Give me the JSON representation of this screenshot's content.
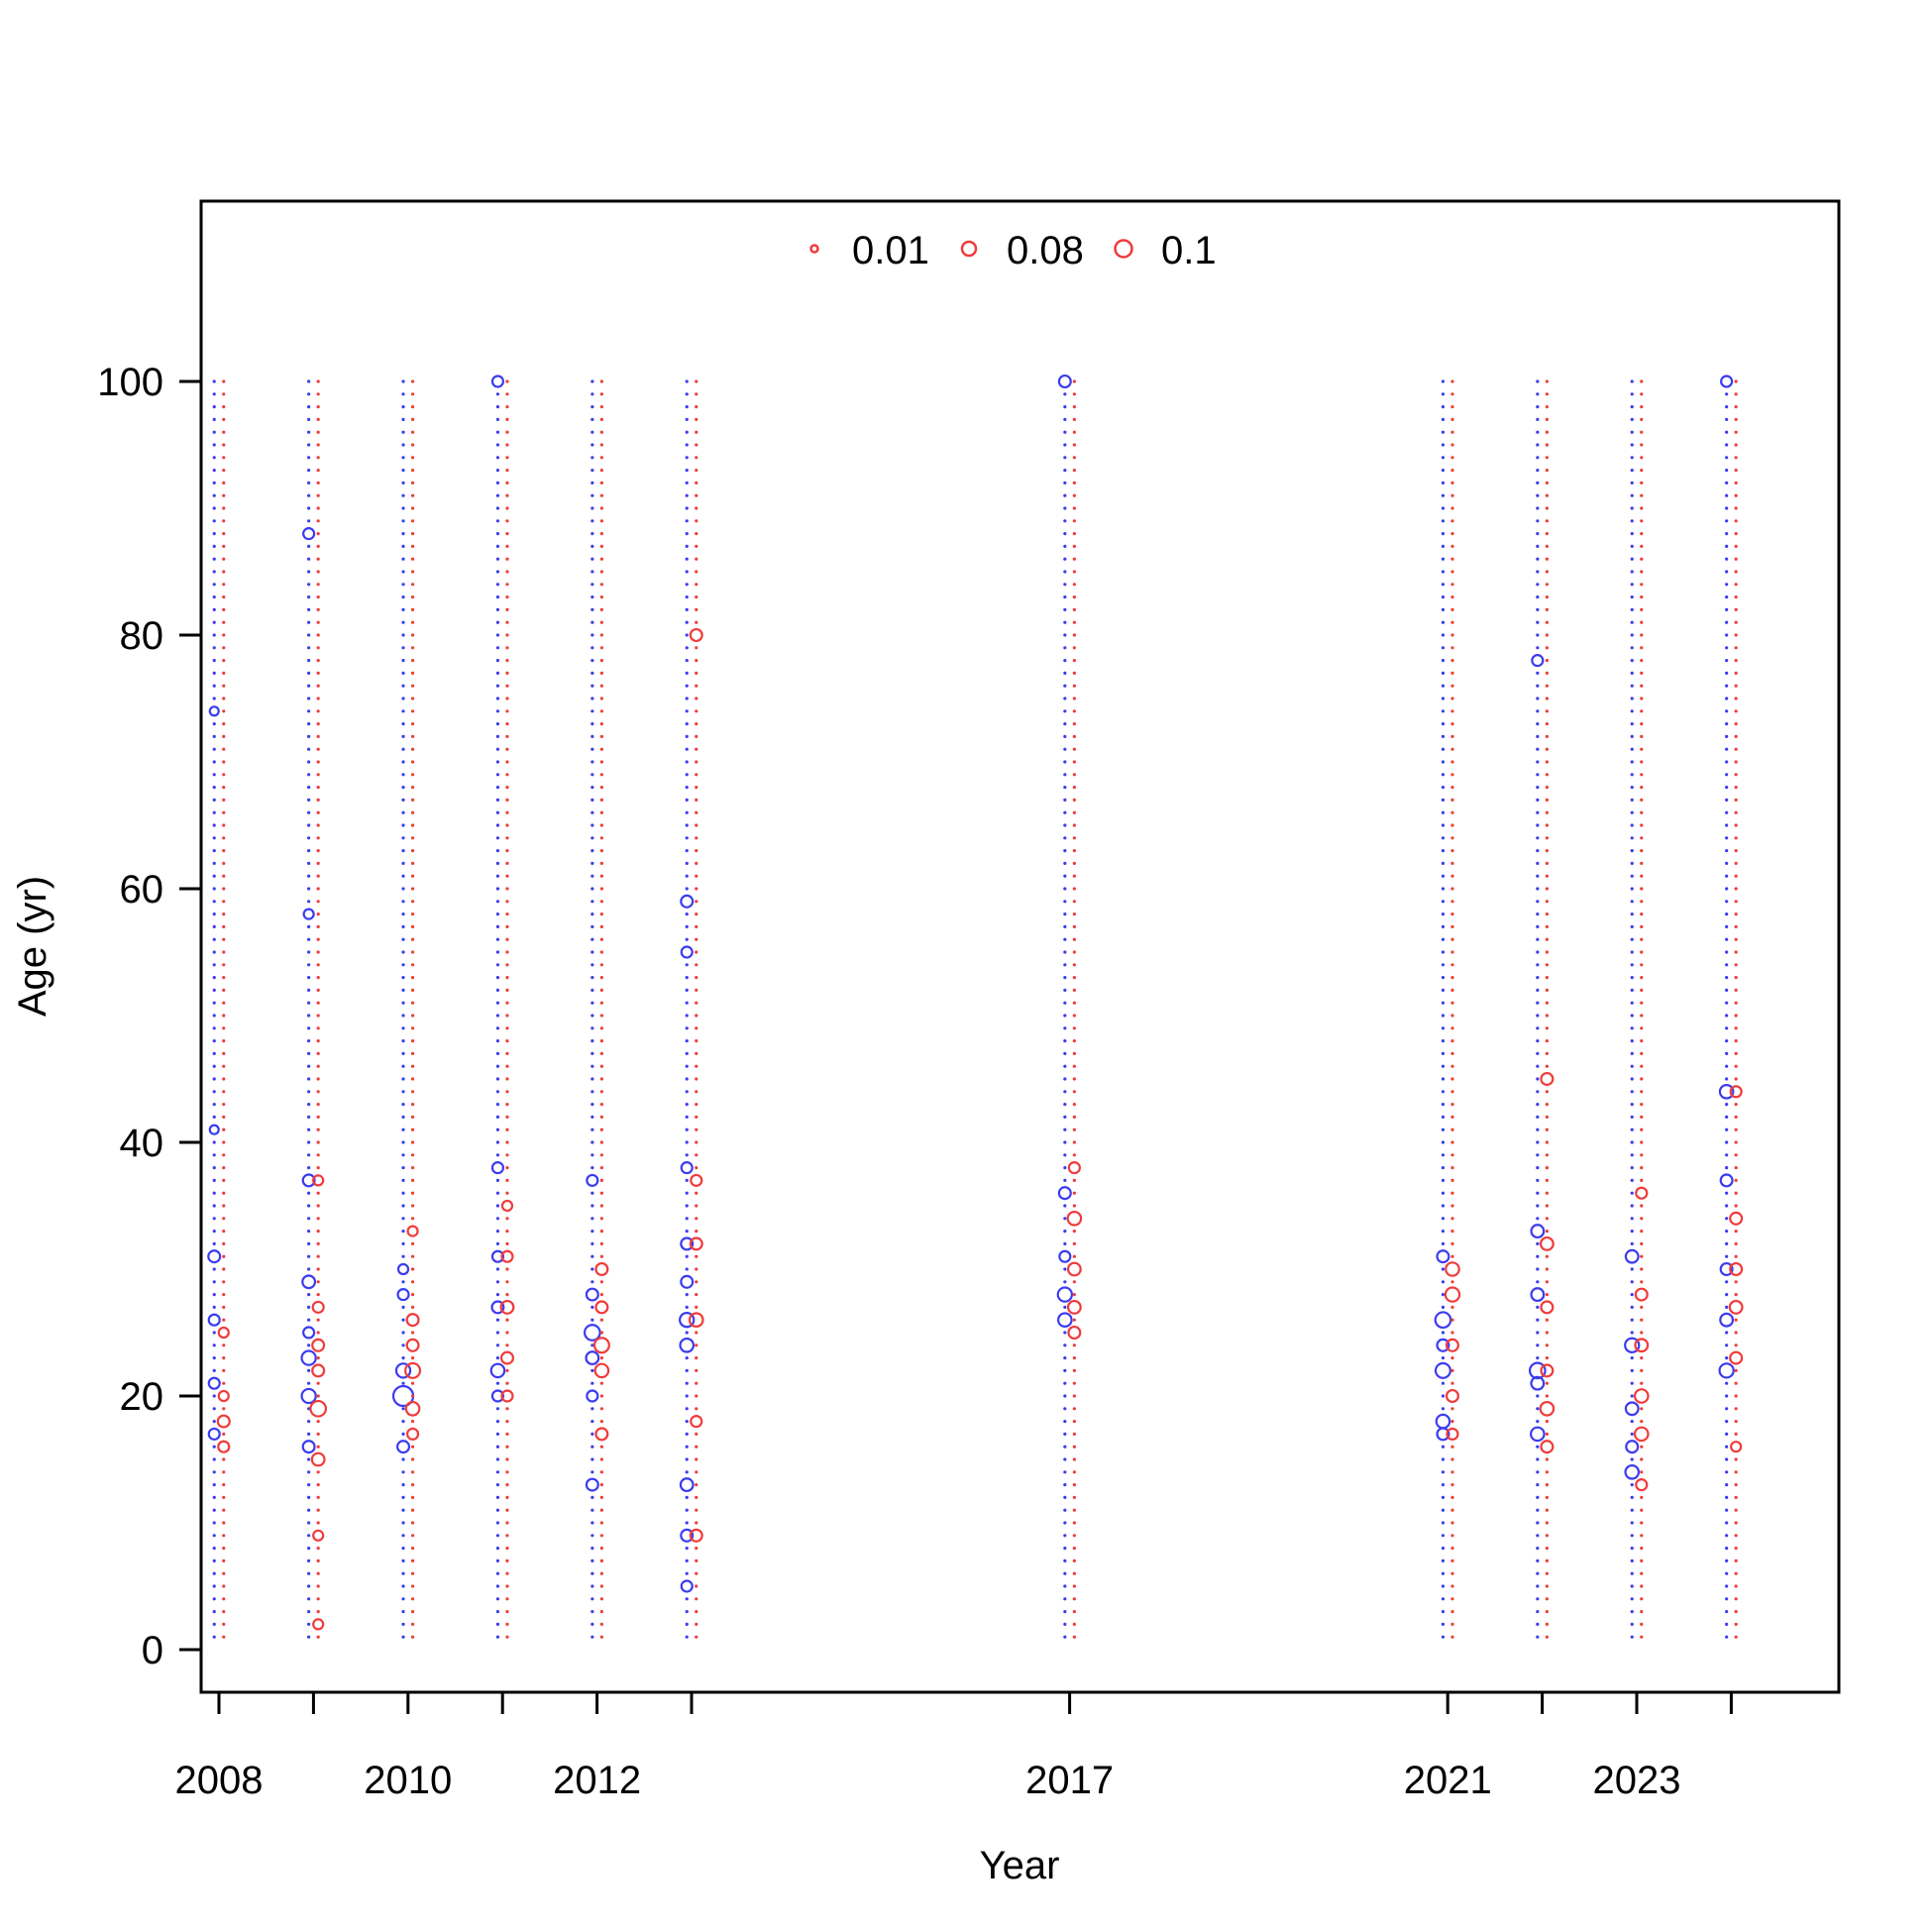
{
  "chart_data": {
    "type": "scatter",
    "subtype": "bubble",
    "title": "",
    "xlabel": "Year",
    "ylabel": "Age (yr)",
    "xlim": [
      2007.8,
      2025.2
    ],
    "ylim": [
      -3,
      115
    ],
    "x_ticks": [
      2008,
      2009,
      2010,
      2011,
      2012,
      2013,
      2017,
      2021,
      2022,
      2023,
      2024
    ],
    "x_tick_labels": [
      {
        "value": 2008,
        "label": "2008"
      },
      {
        "value": 2010,
        "label": "2010"
      },
      {
        "value": 2012,
        "label": "2012"
      },
      {
        "value": 2017,
        "label": "2017"
      },
      {
        "value": 2021,
        "label": "2021"
      },
      {
        "value": 2023,
        "label": "2023"
      }
    ],
    "y_ticks": [
      0,
      20,
      40,
      60,
      80,
      100
    ],
    "y_tick_labels": [
      "0",
      "20",
      "40",
      "60",
      "80",
      "100"
    ],
    "years": [
      2008,
      2009,
      2010,
      2011,
      2012,
      2013,
      2017,
      2021,
      2022,
      2023,
      2024
    ],
    "age_range": [
      1,
      100
    ],
    "legend": {
      "placement": "top-center",
      "entries": [
        {
          "label": "0.01",
          "value": 0.01
        },
        {
          "label": "0.08",
          "value": 0.08
        },
        {
          "label": "0.1",
          "value": 0.1
        }
      ]
    },
    "colors": {
      "series_a": "#3b3bf0",
      "series_b": "#f03b3b",
      "axis": "#000000"
    },
    "grid": false,
    "series": [
      {
        "color": "#3b3bf0",
        "x_offset": -0.05,
        "points": [
          {
            "x": 2008,
            "y": 31,
            "v": 0.035
          },
          {
            "x": 2008,
            "y": 26,
            "v": 0.03
          },
          {
            "x": 2008,
            "y": 21,
            "v": 0.03
          },
          {
            "x": 2008,
            "y": 17,
            "v": 0.03
          },
          {
            "x": 2008,
            "y": 74,
            "v": 0.02
          },
          {
            "x": 2008,
            "y": 41,
            "v": 0.02
          },
          {
            "x": 2009,
            "y": 20,
            "v": 0.05
          },
          {
            "x": 2009,
            "y": 23,
            "v": 0.05
          },
          {
            "x": 2009,
            "y": 29,
            "v": 0.04
          },
          {
            "x": 2009,
            "y": 37,
            "v": 0.035
          },
          {
            "x": 2009,
            "y": 16,
            "v": 0.035
          },
          {
            "x": 2009,
            "y": 88,
            "v": 0.03
          },
          {
            "x": 2009,
            "y": 58,
            "v": 0.025
          },
          {
            "x": 2009,
            "y": 25,
            "v": 0.03
          },
          {
            "x": 2010,
            "y": 20,
            "v": 0.1
          },
          {
            "x": 2010,
            "y": 22,
            "v": 0.05
          },
          {
            "x": 2010,
            "y": 16,
            "v": 0.035
          },
          {
            "x": 2010,
            "y": 28,
            "v": 0.03
          },
          {
            "x": 2010,
            "y": 30,
            "v": 0.025
          },
          {
            "x": 2011,
            "y": 100,
            "v": 0.03
          },
          {
            "x": 2011,
            "y": 22,
            "v": 0.045
          },
          {
            "x": 2011,
            "y": 27,
            "v": 0.035
          },
          {
            "x": 2011,
            "y": 38,
            "v": 0.03
          },
          {
            "x": 2011,
            "y": 31,
            "v": 0.03
          },
          {
            "x": 2011,
            "y": 20,
            "v": 0.03
          },
          {
            "x": 2012,
            "y": 25,
            "v": 0.06
          },
          {
            "x": 2012,
            "y": 23,
            "v": 0.04
          },
          {
            "x": 2012,
            "y": 28,
            "v": 0.035
          },
          {
            "x": 2012,
            "y": 13,
            "v": 0.035
          },
          {
            "x": 2012,
            "y": 37,
            "v": 0.03
          },
          {
            "x": 2012,
            "y": 20,
            "v": 0.03
          },
          {
            "x": 2013,
            "y": 26,
            "v": 0.05
          },
          {
            "x": 2013,
            "y": 24,
            "v": 0.045
          },
          {
            "x": 2013,
            "y": 13,
            "v": 0.04
          },
          {
            "x": 2013,
            "y": 59,
            "v": 0.035
          },
          {
            "x": 2013,
            "y": 55,
            "v": 0.03
          },
          {
            "x": 2013,
            "y": 32,
            "v": 0.035
          },
          {
            "x": 2013,
            "y": 9,
            "v": 0.035
          },
          {
            "x": 2013,
            "y": 5,
            "v": 0.03
          },
          {
            "x": 2013,
            "y": 38,
            "v": 0.03
          },
          {
            "x": 2013,
            "y": 29,
            "v": 0.035
          },
          {
            "x": 2017,
            "y": 100,
            "v": 0.035
          },
          {
            "x": 2017,
            "y": 28,
            "v": 0.05
          },
          {
            "x": 2017,
            "y": 26,
            "v": 0.045
          },
          {
            "x": 2017,
            "y": 36,
            "v": 0.035
          },
          {
            "x": 2017,
            "y": 31,
            "v": 0.03
          },
          {
            "x": 2021,
            "y": 26,
            "v": 0.06
          },
          {
            "x": 2021,
            "y": 22,
            "v": 0.055
          },
          {
            "x": 2021,
            "y": 18,
            "v": 0.045
          },
          {
            "x": 2021,
            "y": 31,
            "v": 0.035
          },
          {
            "x": 2021,
            "y": 24,
            "v": 0.035
          },
          {
            "x": 2021,
            "y": 17,
            "v": 0.035
          },
          {
            "x": 2022,
            "y": 22,
            "v": 0.06
          },
          {
            "x": 2022,
            "y": 17,
            "v": 0.045
          },
          {
            "x": 2022,
            "y": 33,
            "v": 0.04
          },
          {
            "x": 2022,
            "y": 28,
            "v": 0.04
          },
          {
            "x": 2022,
            "y": 78,
            "v": 0.03
          },
          {
            "x": 2022,
            "y": 21,
            "v": 0.04
          },
          {
            "x": 2023,
            "y": 24,
            "v": 0.05
          },
          {
            "x": 2023,
            "y": 14,
            "v": 0.045
          },
          {
            "x": 2023,
            "y": 31,
            "v": 0.04
          },
          {
            "x": 2023,
            "y": 19,
            "v": 0.04
          },
          {
            "x": 2023,
            "y": 16,
            "v": 0.035
          },
          {
            "x": 2024,
            "y": 22,
            "v": 0.05
          },
          {
            "x": 2024,
            "y": 44,
            "v": 0.045
          },
          {
            "x": 2024,
            "y": 26,
            "v": 0.04
          },
          {
            "x": 2024,
            "y": 30,
            "v": 0.035
          },
          {
            "x": 2024,
            "y": 37,
            "v": 0.035
          },
          {
            "x": 2024,
            "y": 100,
            "v": 0.03
          }
        ]
      },
      {
        "color": "#f03b3b",
        "x_offset": 0.05,
        "points": [
          {
            "x": 2008,
            "y": 18,
            "v": 0.035
          },
          {
            "x": 2008,
            "y": 16,
            "v": 0.03
          },
          {
            "x": 2008,
            "y": 20,
            "v": 0.025
          },
          {
            "x": 2008,
            "y": 25,
            "v": 0.025
          },
          {
            "x": 2009,
            "y": 19,
            "v": 0.06
          },
          {
            "x": 2009,
            "y": 15,
            "v": 0.04
          },
          {
            "x": 2009,
            "y": 22,
            "v": 0.035
          },
          {
            "x": 2009,
            "y": 24,
            "v": 0.035
          },
          {
            "x": 2009,
            "y": 27,
            "v": 0.03
          },
          {
            "x": 2009,
            "y": 37,
            "v": 0.025
          },
          {
            "x": 2009,
            "y": 9,
            "v": 0.025
          },
          {
            "x": 2009,
            "y": 2,
            "v": 0.025
          },
          {
            "x": 2010,
            "y": 22,
            "v": 0.055
          },
          {
            "x": 2010,
            "y": 19,
            "v": 0.045
          },
          {
            "x": 2010,
            "y": 24,
            "v": 0.035
          },
          {
            "x": 2010,
            "y": 26,
            "v": 0.035
          },
          {
            "x": 2010,
            "y": 17,
            "v": 0.03
          },
          {
            "x": 2010,
            "y": 33,
            "v": 0.025
          },
          {
            "x": 2011,
            "y": 27,
            "v": 0.04
          },
          {
            "x": 2011,
            "y": 23,
            "v": 0.035
          },
          {
            "x": 2011,
            "y": 31,
            "v": 0.03
          },
          {
            "x": 2011,
            "y": 20,
            "v": 0.03
          },
          {
            "x": 2011,
            "y": 35,
            "v": 0.025
          },
          {
            "x": 2012,
            "y": 24,
            "v": 0.055
          },
          {
            "x": 2012,
            "y": 22,
            "v": 0.045
          },
          {
            "x": 2012,
            "y": 30,
            "v": 0.035
          },
          {
            "x": 2012,
            "y": 17,
            "v": 0.035
          },
          {
            "x": 2012,
            "y": 27,
            "v": 0.035
          },
          {
            "x": 2013,
            "y": 26,
            "v": 0.045
          },
          {
            "x": 2013,
            "y": 80,
            "v": 0.035
          },
          {
            "x": 2013,
            "y": 37,
            "v": 0.03
          },
          {
            "x": 2013,
            "y": 9,
            "v": 0.035
          },
          {
            "x": 2013,
            "y": 32,
            "v": 0.035
          },
          {
            "x": 2013,
            "y": 18,
            "v": 0.03
          },
          {
            "x": 2017,
            "y": 34,
            "v": 0.045
          },
          {
            "x": 2017,
            "y": 30,
            "v": 0.04
          },
          {
            "x": 2017,
            "y": 27,
            "v": 0.04
          },
          {
            "x": 2017,
            "y": 25,
            "v": 0.035
          },
          {
            "x": 2017,
            "y": 38,
            "v": 0.03
          },
          {
            "x": 2021,
            "y": 28,
            "v": 0.05
          },
          {
            "x": 2021,
            "y": 30,
            "v": 0.045
          },
          {
            "x": 2021,
            "y": 24,
            "v": 0.035
          },
          {
            "x": 2021,
            "y": 20,
            "v": 0.035
          },
          {
            "x": 2021,
            "y": 17,
            "v": 0.03
          },
          {
            "x": 2022,
            "y": 19,
            "v": 0.045
          },
          {
            "x": 2022,
            "y": 32,
            "v": 0.04
          },
          {
            "x": 2022,
            "y": 45,
            "v": 0.035
          },
          {
            "x": 2022,
            "y": 22,
            "v": 0.035
          },
          {
            "x": 2022,
            "y": 16,
            "v": 0.035
          },
          {
            "x": 2022,
            "y": 27,
            "v": 0.035
          },
          {
            "x": 2023,
            "y": 20,
            "v": 0.045
          },
          {
            "x": 2023,
            "y": 17,
            "v": 0.045
          },
          {
            "x": 2023,
            "y": 24,
            "v": 0.04
          },
          {
            "x": 2023,
            "y": 28,
            "v": 0.035
          },
          {
            "x": 2023,
            "y": 36,
            "v": 0.03
          },
          {
            "x": 2023,
            "y": 13,
            "v": 0.03
          },
          {
            "x": 2024,
            "y": 27,
            "v": 0.04
          },
          {
            "x": 2024,
            "y": 30,
            "v": 0.035
          },
          {
            "x": 2024,
            "y": 34,
            "v": 0.035
          },
          {
            "x": 2024,
            "y": 23,
            "v": 0.035
          },
          {
            "x": 2024,
            "y": 44,
            "v": 0.03
          },
          {
            "x": 2024,
            "y": 16,
            "v": 0.025
          }
        ]
      }
    ]
  }
}
